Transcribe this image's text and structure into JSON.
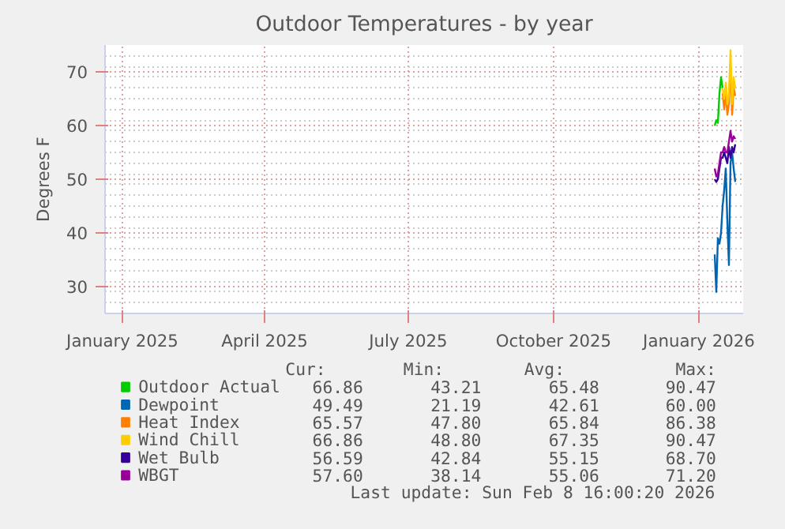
{
  "chart_data": {
    "type": "line",
    "title": "Outdoor Temperatures - by year",
    "ylabel": "Degrees F",
    "x": [
      "2026-01-26",
      "2026-01-27",
      "2026-01-28",
      "2026-01-29",
      "2026-01-30",
      "2026-01-31",
      "2026-02-01",
      "2026-02-02",
      "2026-02-03",
      "2026-02-04",
      "2026-02-05",
      "2026-02-06",
      "2026-02-07",
      "2026-02-08"
    ],
    "series": [
      {
        "name": "Outdoor Actual",
        "color": "#00cc00",
        "values": [
          60,
          61,
          60.5,
          66,
          69,
          67,
          null,
          null,
          null,
          null,
          null,
          null,
          null,
          null
        ]
      },
      {
        "name": "Dewpoint",
        "color": "#0066b3",
        "values": [
          36,
          29,
          39,
          38,
          40,
          45,
          48,
          52,
          42,
          34,
          53,
          55,
          52,
          49.5
        ]
      },
      {
        "name": "Heat Index",
        "color": "#ff8000",
        "values": [
          null,
          null,
          null,
          null,
          null,
          66,
          63,
          66,
          62,
          64,
          71,
          62,
          67,
          65.5
        ]
      },
      {
        "name": "Wind Chill",
        "color": "#ffcc00",
        "values": [
          null,
          null,
          null,
          null,
          null,
          67,
          65,
          68,
          64,
          66,
          74,
          64,
          69,
          67
        ]
      },
      {
        "name": "Wet Bulb",
        "color": "#330099",
        "values": [
          50,
          49.5,
          50,
          52,
          54,
          54,
          55,
          54,
          53,
          56,
          54,
          56,
          55,
          56.5
        ]
      },
      {
        "name": "WBGT",
        "color": "#990099",
        "values": [
          52,
          50.5,
          51,
          53,
          55,
          55,
          56,
          55,
          55,
          57,
          59,
          57,
          58,
          57.5
        ]
      }
    ],
    "xlim": [
      "2025-01-05",
      "2026-02-13"
    ],
    "xticks": [
      {
        "value": "2025-01-16",
        "label": "January 2025"
      },
      {
        "value": "2025-04-16",
        "label": "April 2025"
      },
      {
        "value": "2025-07-16",
        "label": "July 2025"
      },
      {
        "value": "2025-10-16",
        "label": "October 2025"
      },
      {
        "value": "2026-01-16",
        "label": "January 2026"
      }
    ],
    "ylim": [
      25,
      75
    ],
    "yticks": [
      30,
      40,
      50,
      60,
      70
    ],
    "grid": true,
    "legend": "bottom",
    "marker": "none",
    "line_style": "solid",
    "annotations": [
      "Cur:",
      "Min:",
      "Avg:",
      "Max:",
      "66.86",
      "43.21",
      "65.48",
      "90.47",
      "49.49",
      "21.19",
      "42.61",
      "60.00",
      "65.57",
      "47.80",
      "65.84",
      "86.38",
      "66.86",
      "48.80",
      "67.35",
      "90.47",
      "56.59",
      "42.84",
      "55.15",
      "68.70",
      "57.60",
      "38.14",
      "55.06",
      "71.20",
      "Last update: Sun Feb  8 16:00:20 2026"
    ]
  }
}
